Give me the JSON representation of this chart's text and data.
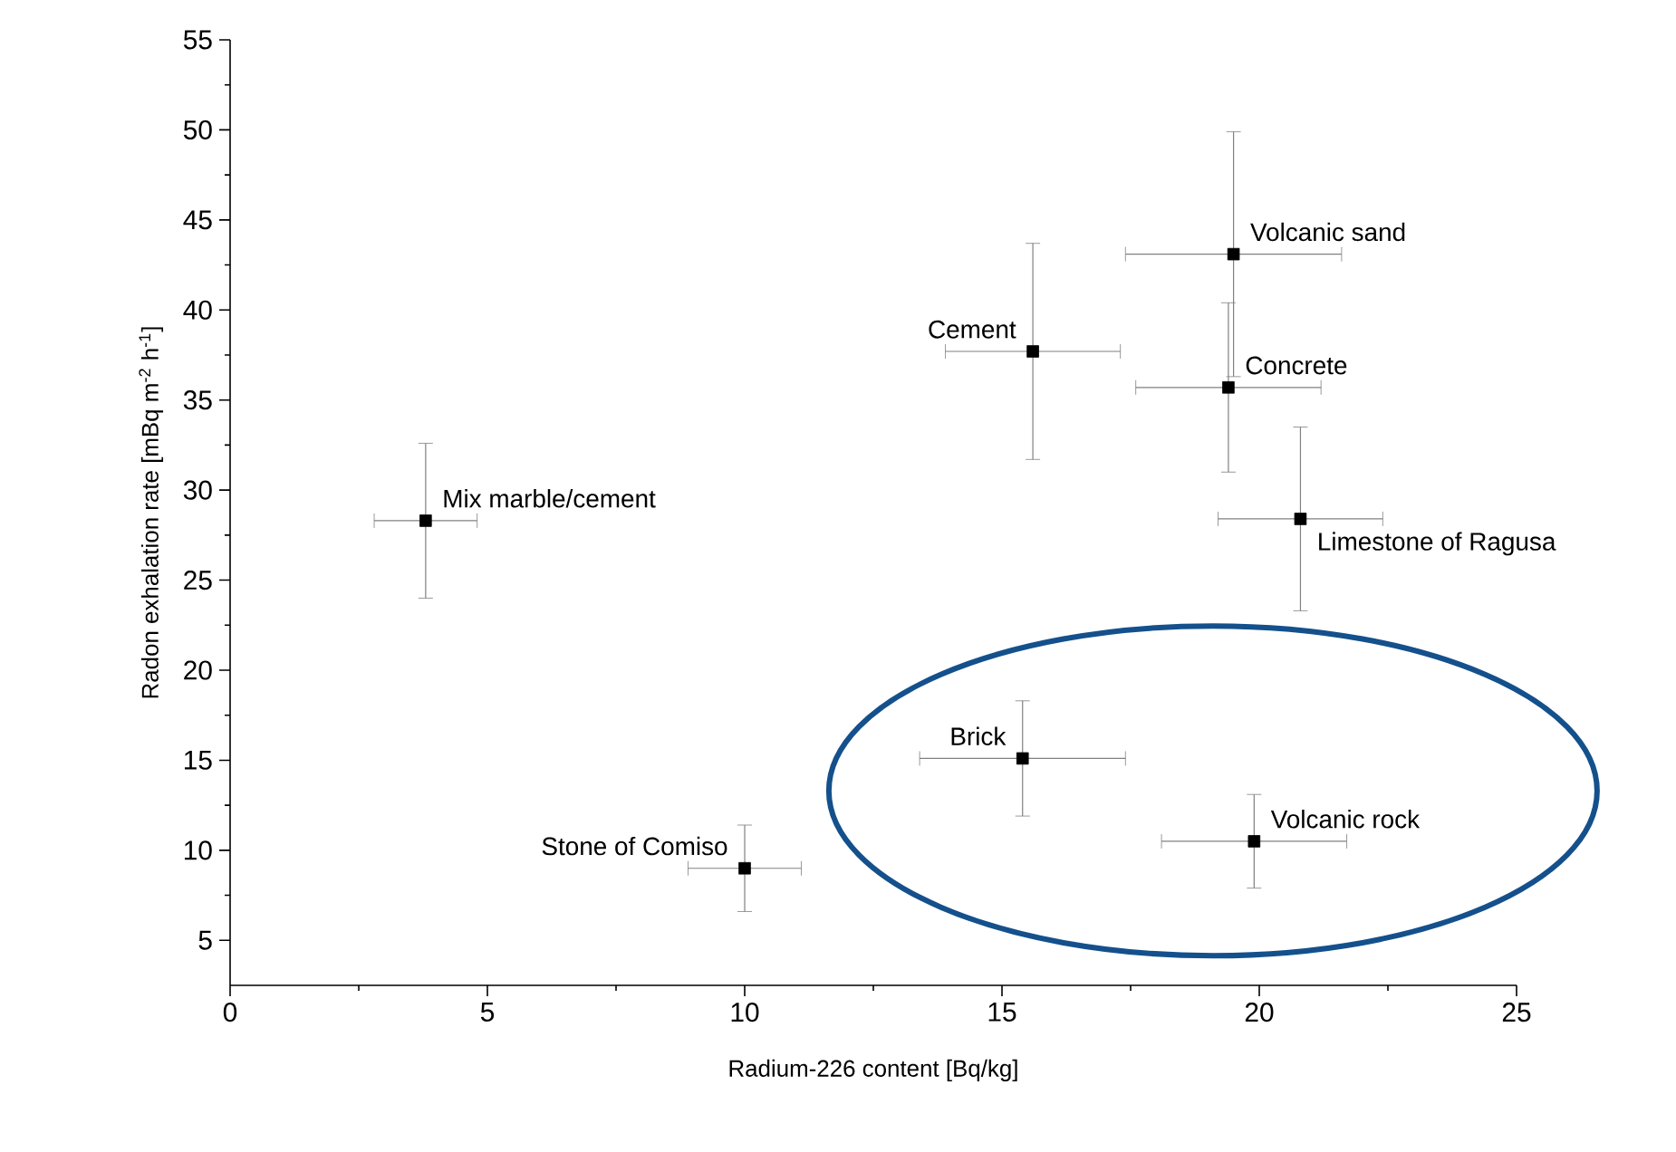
{
  "chart_data": {
    "type": "scatter",
    "xlabel": "Radium-226 content [Bq/kg]",
    "ylabel": "Radon exhalation rate [mBq m$^{-2}$ h$^{-1}$]",
    "x": [
      3.8,
      19.5,
      15.6,
      19.4,
      20.8,
      15.4,
      19.9,
      10.0
    ],
    "values": [
      28.3,
      43.1,
      37.7,
      35.7,
      28.4,
      15.1,
      10.5,
      9.0
    ],
    "errors": [
      4.3,
      6.8,
      6.0,
      4.7,
      5.1,
      3.2,
      2.6,
      2.4
    ],
    "xerrors": [
      1.0,
      2.1,
      1.7,
      1.8,
      1.6,
      2.0,
      1.8,
      1.1
    ],
    "color": "#000000",
    "marker": "square",
    "xlim": [
      0,
      25
    ],
    "ylim": [
      2.5,
      55
    ],
    "xticks": [
      0,
      5,
      10,
      15,
      20,
      25
    ],
    "yticks": [
      5,
      10,
      15,
      20,
      25,
      30,
      35,
      40,
      45,
      50,
      55
    ],
    "grid": false,
    "annotations": [
      {
        "text": "Mix marble/cement",
        "x": 3.8,
        "y": 28.3
      },
      {
        "text": "Volcanic sand",
        "x": 19.5,
        "y": 43.1
      },
      {
        "text": "Cement",
        "x": 15.6,
        "y": 37.7
      },
      {
        "text": "Concrete",
        "x": 19.4,
        "y": 35.7
      },
      {
        "text": "Limestone of Ragusa",
        "x": 20.8,
        "y": 28.4
      },
      {
        "text": "Brick",
        "x": 15.4,
        "y": 15.1
      },
      {
        "text": "Volcanic rock",
        "x": 19.9,
        "y": 10.5
      },
      {
        "text": "Stone of Comiso",
        "x": 10.0,
        "y": 9.0
      }
    ]
  }
}
